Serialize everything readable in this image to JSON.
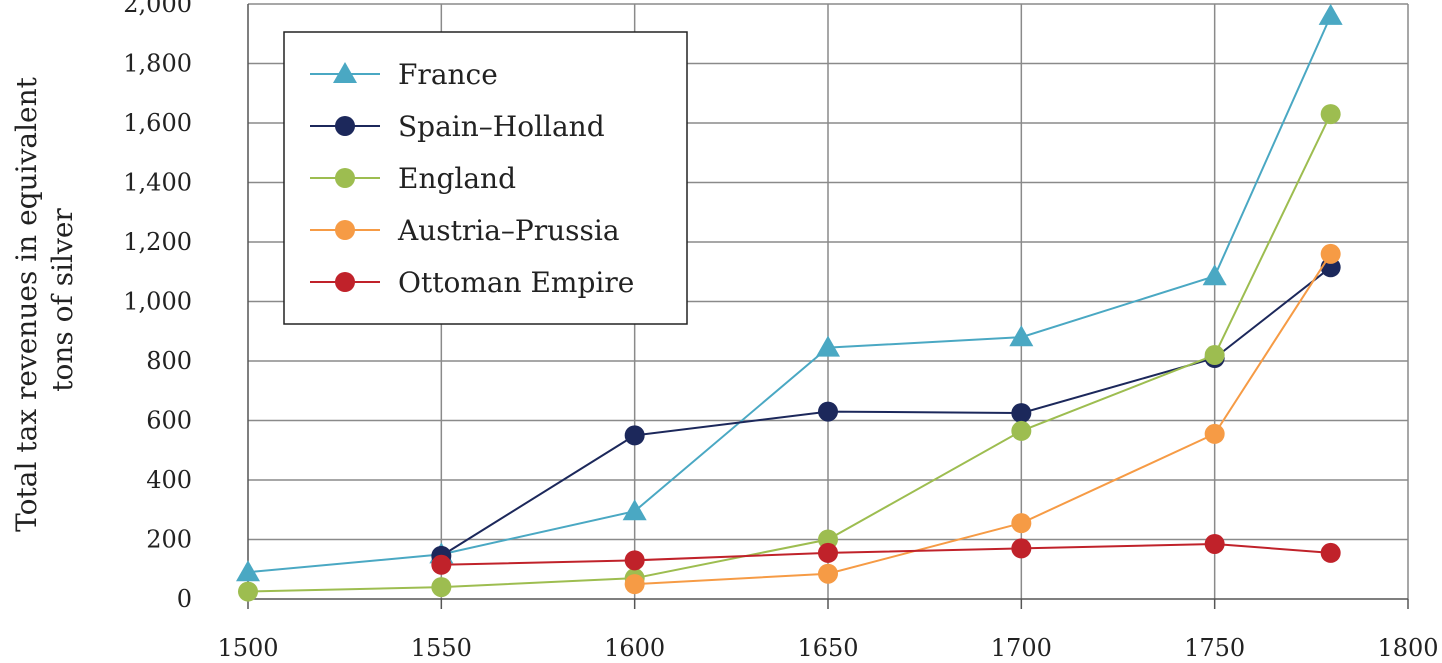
{
  "chart_data": {
    "type": "line",
    "title": "",
    "xlabel": "",
    "ylabel_lines": [
      "Total tax revenues in equivalent",
      "tons of silver"
    ],
    "xlim": [
      1500,
      1800
    ],
    "ylim": [
      0,
      2000
    ],
    "xticks": [
      1500,
      1550,
      1600,
      1650,
      1700,
      1750,
      1800
    ],
    "xtick_labels": [
      "1500",
      "1550",
      "1600",
      "1650",
      "1700",
      "1750",
      "1800"
    ],
    "yticks": [
      0,
      200,
      400,
      600,
      800,
      1000,
      1200,
      1400,
      1600,
      1800,
      2000
    ],
    "ytick_labels": [
      "0",
      "200",
      "400",
      "600",
      "800",
      "1,000",
      "1,200",
      "1,400",
      "1,600",
      "1,800",
      "2,000"
    ],
    "grid": true,
    "legend_position": "top-left",
    "series": [
      {
        "name": "France",
        "color": "#4aa8c3",
        "marker": "triangle",
        "points": [
          [
            1500,
            90
          ],
          [
            1550,
            150
          ],
          [
            1600,
            295
          ],
          [
            1650,
            845
          ],
          [
            1700,
            880
          ],
          [
            1750,
            1085
          ],
          [
            1780,
            1960
          ]
        ]
      },
      {
        "name": "Spain–Holland",
        "color": "#1c285b",
        "marker": "circle",
        "points": [
          [
            1550,
            145
          ],
          [
            1600,
            550
          ],
          [
            1650,
            630
          ],
          [
            1700,
            625
          ],
          [
            1750,
            810
          ],
          [
            1780,
            1115
          ]
        ]
      },
      {
        "name": "England",
        "color": "#9dbd50",
        "marker": "circle",
        "points": [
          [
            1500,
            25
          ],
          [
            1550,
            40
          ],
          [
            1600,
            70
          ],
          [
            1650,
            200
          ],
          [
            1700,
            565
          ],
          [
            1750,
            820
          ],
          [
            1780,
            1630
          ]
        ]
      },
      {
        "name": "Austria–Prussia",
        "color": "#f69b45",
        "marker": "circle",
        "points": [
          [
            1600,
            50
          ],
          [
            1650,
            85
          ],
          [
            1700,
            255
          ],
          [
            1750,
            555
          ],
          [
            1780,
            1160
          ]
        ]
      },
      {
        "name": "Ottoman Empire",
        "color": "#c0222a",
        "marker": "circle",
        "points": [
          [
            1550,
            115
          ],
          [
            1600,
            130
          ],
          [
            1650,
            155
          ],
          [
            1700,
            170
          ],
          [
            1750,
            185
          ],
          [
            1780,
            155
          ]
        ]
      }
    ]
  }
}
